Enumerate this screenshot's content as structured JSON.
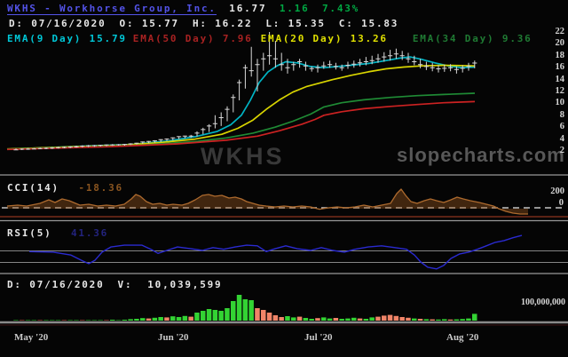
{
  "header": {
    "title": "WKHS - Workhorse Group, Inc.",
    "price": "16.77",
    "change": "1.16",
    "change_pct": "7.43%",
    "ohlc": {
      "d": "D:",
      "date": "07/16/2020",
      "o": "O:",
      "open": "15.77",
      "h": "H:",
      "high": "16.22",
      "l": "L:",
      "low": "15.35",
      "c": "C:",
      "close": "15.83"
    },
    "ema_legend": [
      {
        "label": "EMA(9 Day)",
        "value": "15.79"
      },
      {
        "label": "EMA(50 Day)",
        "value": "7.96"
      },
      {
        "label": "EMA(20 Day)",
        "value": "13.26"
      },
      {
        "label": "EMA(34 Day)",
        "value": "9.36"
      }
    ]
  },
  "watermarks": {
    "symbol": "WKHS",
    "site": "slopecharts.com"
  },
  "indicators": {
    "cci": {
      "label": "CCI(14)",
      "value": "-18.36",
      "axis": [
        "200",
        "0"
      ]
    },
    "rsi": {
      "label": "RSI(5)",
      "value": "41.36"
    },
    "volume": {
      "d": "D:",
      "date": "07/16/2020",
      "v": "V:",
      "value": "10,039,599",
      "axis": "100,000,000"
    }
  },
  "chart_data": {
    "type": "candlestick+indicators",
    "symbol": "WKHS",
    "price_ticks": [
      22,
      20,
      18,
      16,
      14,
      12,
      10,
      8,
      6,
      4,
      2
    ],
    "x_labels": [
      "May '20",
      "Jun '20",
      "Jul '20",
      "Aug '20"
    ],
    "candles": [
      [
        2.4,
        2.1,
        2.2
      ],
      [
        2.45,
        2.15,
        2.3
      ],
      [
        2.5,
        2.2,
        2.3
      ],
      [
        2.5,
        2.25,
        2.35
      ],
      [
        2.55,
        2.3,
        2.4
      ],
      [
        2.6,
        2.3,
        2.45
      ],
      [
        2.65,
        2.35,
        2.5
      ],
      [
        2.7,
        2.4,
        2.55
      ],
      [
        2.75,
        2.45,
        2.6
      ],
      [
        2.8,
        2.5,
        2.65
      ],
      [
        2.9,
        2.55,
        2.7
      ],
      [
        2.95,
        2.6,
        2.8
      ],
      [
        3.0,
        2.65,
        2.85
      ],
      [
        3.0,
        2.7,
        2.9
      ],
      [
        3.05,
        2.75,
        2.95
      ],
      [
        3.1,
        2.8,
        3.0
      ],
      [
        3.15,
        2.85,
        3.0
      ],
      [
        3.15,
        2.9,
        3.05
      ],
      [
        3.2,
        2.9,
        3.1
      ],
      [
        3.3,
        3.0,
        3.2
      ],
      [
        3.4,
        3.1,
        3.3
      ],
      [
        3.6,
        3.2,
        3.5
      ],
      [
        3.7,
        3.3,
        3.6
      ],
      [
        3.8,
        3.4,
        3.7
      ],
      [
        4.0,
        3.5,
        3.9
      ],
      [
        4.1,
        3.7,
        4.0
      ],
      [
        4.3,
        3.8,
        4.2
      ],
      [
        4.5,
        4.0,
        4.4
      ],
      [
        4.6,
        4.1,
        4.5
      ],
      [
        4.7,
        4.2,
        4.5
      ],
      [
        5.3,
        4.4,
        5.0
      ],
      [
        5.9,
        4.8,
        5.6
      ],
      [
        6.5,
        5.2,
        6.2
      ],
      [
        8.0,
        5.8,
        6.6
      ],
      [
        8.5,
        6.2,
        7.6
      ],
      [
        9.5,
        7.0,
        9.0
      ],
      [
        11.5,
        8.5,
        11.0
      ],
      [
        14.0,
        10.5,
        13.5
      ],
      [
        16.5,
        12.5,
        16.0
      ],
      [
        19.5,
        14.5,
        15.5
      ],
      [
        17.5,
        12.0,
        16.5
      ],
      [
        18.5,
        15.5,
        17.5
      ],
      [
        22.0,
        16.5,
        18.0
      ],
      [
        20.5,
        16.0,
        17.5
      ],
      [
        18.5,
        15.5,
        16.5
      ],
      [
        17.5,
        15.0,
        16.0
      ],
      [
        17.0,
        15.5,
        16.5
      ],
      [
        17.5,
        16.0,
        17.0
      ],
      [
        17.0,
        15.5,
        16.3
      ],
      [
        16.22,
        15.35,
        15.83
      ],
      [
        16.5,
        15.2,
        16.0
      ],
      [
        17.0,
        15.8,
        16.3
      ],
      [
        17.2,
        16.0,
        16.5
      ],
      [
        16.8,
        15.7,
        16.2
      ],
      [
        16.5,
        15.5,
        16.0
      ],
      [
        17.0,
        15.8,
        16.4
      ],
      [
        17.2,
        16.0,
        16.6
      ],
      [
        17.5,
        16.2,
        16.8
      ],
      [
        17.8,
        16.4,
        17.0
      ],
      [
        18.0,
        16.6,
        17.2
      ],
      [
        18.3,
        16.8,
        17.5
      ],
      [
        18.6,
        17.0,
        17.8
      ],
      [
        19.0,
        17.2,
        18.0
      ],
      [
        19.2,
        17.5,
        18.3
      ],
      [
        18.8,
        17.3,
        18.0
      ],
      [
        18.5,
        16.8,
        17.5
      ],
      [
        18.0,
        16.4,
        17.0
      ],
      [
        17.5,
        15.9,
        16.5
      ],
      [
        17.0,
        15.6,
        16.2
      ],
      [
        16.8,
        15.4,
        16.0
      ],
      [
        16.4,
        15.2,
        15.8
      ],
      [
        16.5,
        15.3,
        15.9
      ],
      [
        16.6,
        15.4,
        16.0
      ],
      [
        16.2,
        15.0,
        15.7
      ],
      [
        16.4,
        15.2,
        15.9
      ],
      [
        16.8,
        15.5,
        16.2
      ],
      [
        17.2,
        15.9,
        16.77
      ]
    ],
    "ema_series": [
      {
        "name": "EMA 9",
        "points": [
          [
            8,
            2.3
          ],
          [
            60,
            2.6
          ],
          [
            110,
            2.9
          ],
          [
            150,
            3.1
          ],
          [
            190,
            3.7
          ],
          [
            220,
            4.4
          ],
          [
            245,
            5.3
          ],
          [
            260,
            6.4
          ],
          [
            272,
            8.0
          ],
          [
            282,
            10.5
          ],
          [
            292,
            13.5
          ],
          [
            302,
            15.3
          ],
          [
            312,
            16.3
          ],
          [
            322,
            17.0
          ],
          [
            335,
            16.8
          ],
          [
            350,
            16.2
          ],
          [
            365,
            16.0
          ],
          [
            380,
            16.2
          ],
          [
            395,
            16.4
          ],
          [
            415,
            16.7
          ],
          [
            435,
            17.2
          ],
          [
            450,
            17.6
          ],
          [
            462,
            17.8
          ],
          [
            475,
            17.4
          ],
          [
            490,
            16.8
          ],
          [
            505,
            16.3
          ],
          [
            520,
            16.0
          ],
          [
            535,
            16.1
          ]
        ]
      },
      {
        "name": "EMA 20",
        "points": [
          [
            8,
            2.35
          ],
          [
            80,
            2.7
          ],
          [
            140,
            3.0
          ],
          [
            180,
            3.4
          ],
          [
            220,
            4.0
          ],
          [
            250,
            4.8
          ],
          [
            268,
            5.8
          ],
          [
            285,
            7.2
          ],
          [
            300,
            9.0
          ],
          [
            315,
            10.6
          ],
          [
            330,
            11.9
          ],
          [
            345,
            12.8
          ],
          [
            360,
            13.4
          ],
          [
            375,
            14.0
          ],
          [
            395,
            14.7
          ],
          [
            415,
            15.3
          ],
          [
            435,
            15.8
          ],
          [
            455,
            16.1
          ],
          [
            475,
            16.3
          ],
          [
            500,
            16.4
          ],
          [
            535,
            16.3
          ]
        ]
      },
      {
        "name": "EMA 34",
        "points": [
          [
            8,
            2.3
          ],
          [
            100,
            2.7
          ],
          [
            160,
            3.0
          ],
          [
            220,
            3.6
          ],
          [
            255,
            4.2
          ],
          [
            285,
            5.0
          ],
          [
            310,
            6.0
          ],
          [
            330,
            7.0
          ],
          [
            350,
            8.2
          ],
          [
            365,
            9.4
          ],
          [
            385,
            10.1
          ],
          [
            410,
            10.6
          ],
          [
            440,
            11.0
          ],
          [
            470,
            11.3
          ],
          [
            500,
            11.5
          ],
          [
            535,
            11.7
          ]
        ]
      },
      {
        "name": "EMA 50",
        "points": [
          [
            8,
            2.25
          ],
          [
            120,
            2.7
          ],
          [
            200,
            3.2
          ],
          [
            255,
            3.8
          ],
          [
            290,
            4.5
          ],
          [
            315,
            5.4
          ],
          [
            340,
            6.5
          ],
          [
            355,
            7.3
          ],
          [
            365,
            8.0
          ],
          [
            385,
            8.6
          ],
          [
            410,
            9.1
          ],
          [
            440,
            9.5
          ],
          [
            470,
            9.8
          ],
          [
            500,
            10.1
          ],
          [
            535,
            10.3
          ]
        ]
      }
    ],
    "cci_points": [
      [
        8,
        22
      ],
      [
        20,
        33
      ],
      [
        30,
        22
      ],
      [
        45,
        56
      ],
      [
        55,
        100
      ],
      [
        62,
        67
      ],
      [
        70,
        111
      ],
      [
        78,
        89
      ],
      [
        90,
        33
      ],
      [
        100,
        44
      ],
      [
        110,
        22
      ],
      [
        120,
        33
      ],
      [
        130,
        22
      ],
      [
        140,
        44
      ],
      [
        148,
        111
      ],
      [
        153,
        167
      ],
      [
        158,
        144
      ],
      [
        165,
        78
      ],
      [
        172,
        44
      ],
      [
        180,
        56
      ],
      [
        188,
        33
      ],
      [
        195,
        44
      ],
      [
        205,
        33
      ],
      [
        212,
        56
      ],
      [
        220,
        100
      ],
      [
        228,
        156
      ],
      [
        235,
        167
      ],
      [
        242,
        144
      ],
      [
        250,
        156
      ],
      [
        258,
        122
      ],
      [
        265,
        133
      ],
      [
        272,
        111
      ],
      [
        278,
        78
      ],
      [
        285,
        56
      ],
      [
        292,
        33
      ],
      [
        300,
        22
      ],
      [
        310,
        11
      ],
      [
        320,
        22
      ],
      [
        330,
        11
      ],
      [
        340,
        22
      ],
      [
        350,
        11
      ],
      [
        360,
        -18
      ],
      [
        370,
        0
      ],
      [
        380,
        11
      ],
      [
        390,
        0
      ],
      [
        400,
        11
      ],
      [
        410,
        33
      ],
      [
        420,
        11
      ],
      [
        430,
        33
      ],
      [
        440,
        56
      ],
      [
        447,
        178
      ],
      [
        452,
        233
      ],
      [
        457,
        156
      ],
      [
        463,
        78
      ],
      [
        470,
        56
      ],
      [
        478,
        89
      ],
      [
        485,
        111
      ],
      [
        492,
        89
      ],
      [
        500,
        67
      ],
      [
        508,
        100
      ],
      [
        515,
        133
      ],
      [
        522,
        111
      ],
      [
        530,
        89
      ],
      [
        540,
        67
      ],
      [
        548,
        44
      ],
      [
        556,
        22
      ],
      [
        562,
        -11
      ],
      [
        570,
        -44
      ],
      [
        578,
        -67
      ],
      [
        586,
        -78
      ],
      [
        595,
        -78
      ]
    ],
    "rsi_points": [
      [
        33,
        48
      ],
      [
        60,
        47
      ],
      [
        80,
        42
      ],
      [
        93,
        32
      ],
      [
        100,
        27
      ],
      [
        107,
        33
      ],
      [
        115,
        47
      ],
      [
        125,
        56
      ],
      [
        140,
        59
      ],
      [
        160,
        59
      ],
      [
        170,
        52
      ],
      [
        178,
        45
      ],
      [
        188,
        50
      ],
      [
        200,
        56
      ],
      [
        215,
        53
      ],
      [
        228,
        50
      ],
      [
        240,
        55
      ],
      [
        252,
        52
      ],
      [
        265,
        56
      ],
      [
        278,
        59
      ],
      [
        290,
        58
      ],
      [
        300,
        48
      ],
      [
        310,
        53
      ],
      [
        322,
        58
      ],
      [
        335,
        53
      ],
      [
        350,
        50
      ],
      [
        362,
        55
      ],
      [
        375,
        50
      ],
      [
        388,
        47
      ],
      [
        400,
        52
      ],
      [
        415,
        56
      ],
      [
        430,
        58
      ],
      [
        445,
        55
      ],
      [
        458,
        52
      ],
      [
        467,
        42
      ],
      [
        474,
        30
      ],
      [
        482,
        21
      ],
      [
        492,
        18
      ],
      [
        500,
        24
      ],
      [
        508,
        36
      ],
      [
        518,
        44
      ],
      [
        528,
        47
      ],
      [
        538,
        52
      ],
      [
        548,
        58
      ],
      [
        558,
        64
      ],
      [
        568,
        67
      ],
      [
        578,
        72
      ],
      [
        588,
        76
      ]
    ],
    "volume_bars": [
      [
        2,
        "g"
      ],
      [
        2,
        "r"
      ],
      [
        1,
        "g"
      ],
      [
        2,
        "g"
      ],
      [
        3,
        "r"
      ],
      [
        2,
        "g"
      ],
      [
        2,
        "g"
      ],
      [
        3,
        "g"
      ],
      [
        2,
        "r"
      ],
      [
        3,
        "g"
      ],
      [
        4,
        "g"
      ],
      [
        3,
        "r"
      ],
      [
        3,
        "g"
      ],
      [
        4,
        "g"
      ],
      [
        3,
        "g"
      ],
      [
        4,
        "r"
      ],
      [
        5,
        "g"
      ],
      [
        4,
        "g"
      ],
      [
        5,
        "g"
      ],
      [
        8,
        "g"
      ],
      [
        10,
        "g"
      ],
      [
        14,
        "g"
      ],
      [
        12,
        "r"
      ],
      [
        16,
        "g"
      ],
      [
        20,
        "g"
      ],
      [
        18,
        "r"
      ],
      [
        24,
        "g"
      ],
      [
        20,
        "g"
      ],
      [
        26,
        "g"
      ],
      [
        22,
        "r"
      ],
      [
        45,
        "g"
      ],
      [
        55,
        "g"
      ],
      [
        65,
        "g"
      ],
      [
        60,
        "g"
      ],
      [
        55,
        "g"
      ],
      [
        70,
        "g"
      ],
      [
        110,
        "g"
      ],
      [
        145,
        "g"
      ],
      [
        120,
        "g"
      ],
      [
        115,
        "g"
      ],
      [
        70,
        "r"
      ],
      [
        60,
        "r"
      ],
      [
        45,
        "r"
      ],
      [
        30,
        "r"
      ],
      [
        20,
        "r"
      ],
      [
        25,
        "g"
      ],
      [
        18,
        "g"
      ],
      [
        22,
        "r"
      ],
      [
        15,
        "g"
      ],
      [
        10,
        "g"
      ],
      [
        14,
        "r"
      ],
      [
        18,
        "g"
      ],
      [
        12,
        "g"
      ],
      [
        15,
        "r"
      ],
      [
        10,
        "g"
      ],
      [
        12,
        "g"
      ],
      [
        16,
        "g"
      ],
      [
        12,
        "r"
      ],
      [
        10,
        "g"
      ],
      [
        18,
        "g"
      ],
      [
        22,
        "r"
      ],
      [
        28,
        "r"
      ],
      [
        32,
        "r"
      ],
      [
        26,
        "r"
      ],
      [
        20,
        "r"
      ],
      [
        16,
        "r"
      ],
      [
        12,
        "g"
      ],
      [
        10,
        "r"
      ],
      [
        8,
        "g"
      ],
      [
        7,
        "r"
      ],
      [
        6,
        "g"
      ],
      [
        8,
        "g"
      ],
      [
        6,
        "r"
      ],
      [
        7,
        "g"
      ],
      [
        9,
        "g"
      ],
      [
        12,
        "g"
      ],
      [
        38,
        "g"
      ]
    ],
    "palette": {
      "candle": "#d9d9d9",
      "ema9": "#00b4c4",
      "ema20": "#d8d400",
      "ema34": "#1f8b35",
      "ema50": "#cc2222",
      "cci_line": "#ad6a2e",
      "cci_fill": "rgba(150,85,32,0.42)",
      "rsi_line": "#2a2ad0",
      "vol_up": "#33d333",
      "vol_down": "#f08468",
      "vol_up_dim": "#156415",
      "vol_down_dim": "#6e2d24",
      "divider": "#999999",
      "dashed_zero": "#c4c4c4",
      "cci_floor": "#5a2214"
    }
  }
}
